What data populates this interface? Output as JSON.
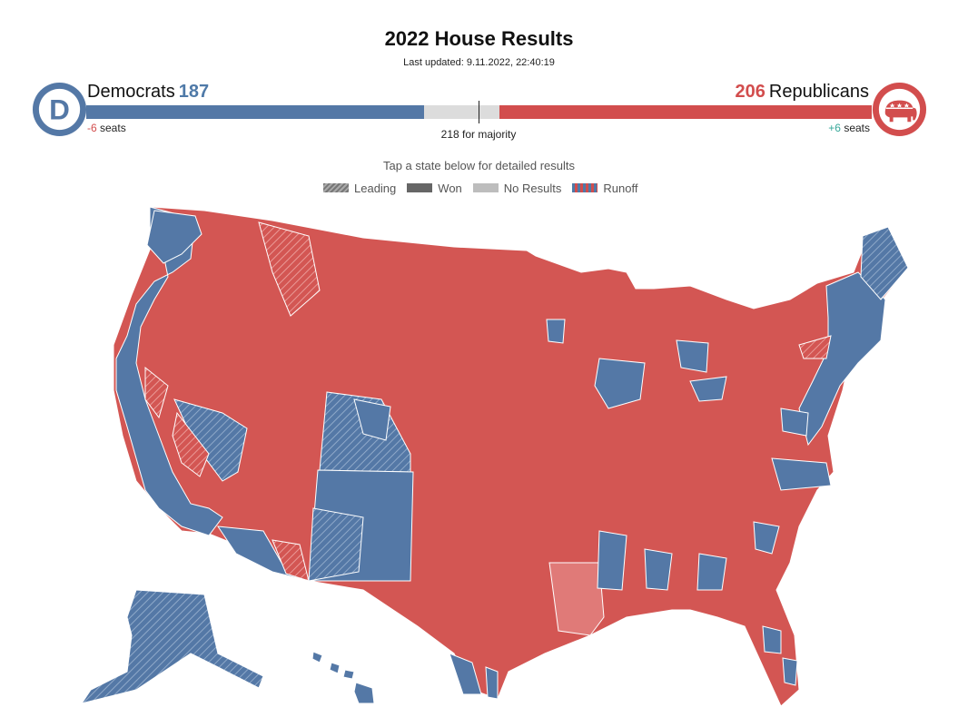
{
  "header": {
    "title": "2022 House Results",
    "last_updated": "Last updated: 9.11.2022, 22:40:19"
  },
  "democrats": {
    "name": "Democrats",
    "seats": "187",
    "change": "-6",
    "change_suffix": " seats",
    "logo_letter": "D",
    "color": "#5478a6"
  },
  "republicans": {
    "name": "Republicans",
    "seats": "206",
    "change": "+6",
    "change_suffix": " seats",
    "color": "#d24d4d"
  },
  "majority": {
    "label": "218 for majority",
    "total_seats": 435
  },
  "hint": "Tap a state below for detailed results",
  "legend": [
    {
      "label": "Leading",
      "icon": "leading-swatch"
    },
    {
      "label": "Won",
      "icon": "won-swatch"
    },
    {
      "label": "No Results",
      "icon": "no-results-swatch"
    },
    {
      "label": "Runoff",
      "icon": "runoff-swatch"
    }
  ],
  "colors": {
    "dem_won": "#5478a6",
    "rep_won": "#d35653",
    "rep_light": "#e07a78",
    "border": "#ffffff"
  }
}
